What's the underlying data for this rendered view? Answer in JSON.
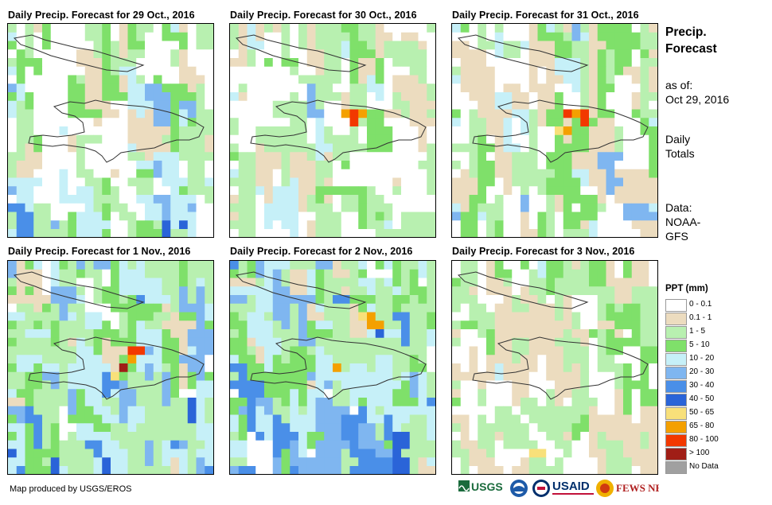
{
  "panels": [
    {
      "title": "Daily Precip. Forecast for 29 Oct., 2016"
    },
    {
      "title": "Daily Precip. Forecast for 30 Oct., 2016"
    },
    {
      "title": "Daily Precip. Forecast for 31 Oct., 2016"
    },
    {
      "title": "Daily Precip. Forecast for 1 Nov., 2016"
    },
    {
      "title": "Daily Precip. Forecast for 2 Nov., 2016"
    },
    {
      "title": "Daily Precip. Forecast for 3 Nov., 2016"
    }
  ],
  "side": {
    "heading_line1": "Precip.",
    "heading_line2": "Forecast",
    "asof_label": "as of:",
    "asof_date": "Oct 29, 2016",
    "totals_line1": "Daily",
    "totals_line2": "Totals",
    "data_line1": "Data:",
    "data_line2": "NOAA-",
    "data_line3": "GFS"
  },
  "legend": {
    "title": "PPT (mm)",
    "items": [
      {
        "label": "0 - 0.1",
        "color": "#ffffff"
      },
      {
        "label": "0.1 - 1",
        "color": "#ecdcbf"
      },
      {
        "label": "1 - 5",
        "color": "#b8f0b0"
      },
      {
        "label": "5 - 10",
        "color": "#7fe06a"
      },
      {
        "label": "10 - 20",
        "color": "#c6f0f8"
      },
      {
        "label": "20 - 30",
        "color": "#7fb6f0"
      },
      {
        "label": "30 - 40",
        "color": "#4a8fe8"
      },
      {
        "label": "40 - 50",
        "color": "#2a64d8"
      },
      {
        "label": "50 - 65",
        "color": "#f8e07a"
      },
      {
        "label": "65 - 80",
        "color": "#f4a000"
      },
      {
        "label": "80 - 100",
        "color": "#f23800"
      },
      {
        "label": "> 100",
        "color": "#a01e16"
      },
      {
        "label": "No Data",
        "color": "#a0a0a0"
      }
    ]
  },
  "footer": {
    "credit": "Map produced by USGS/EROS",
    "logos": [
      "USGS",
      "NOAA",
      "USAID",
      "FEWS NET"
    ]
  }
}
